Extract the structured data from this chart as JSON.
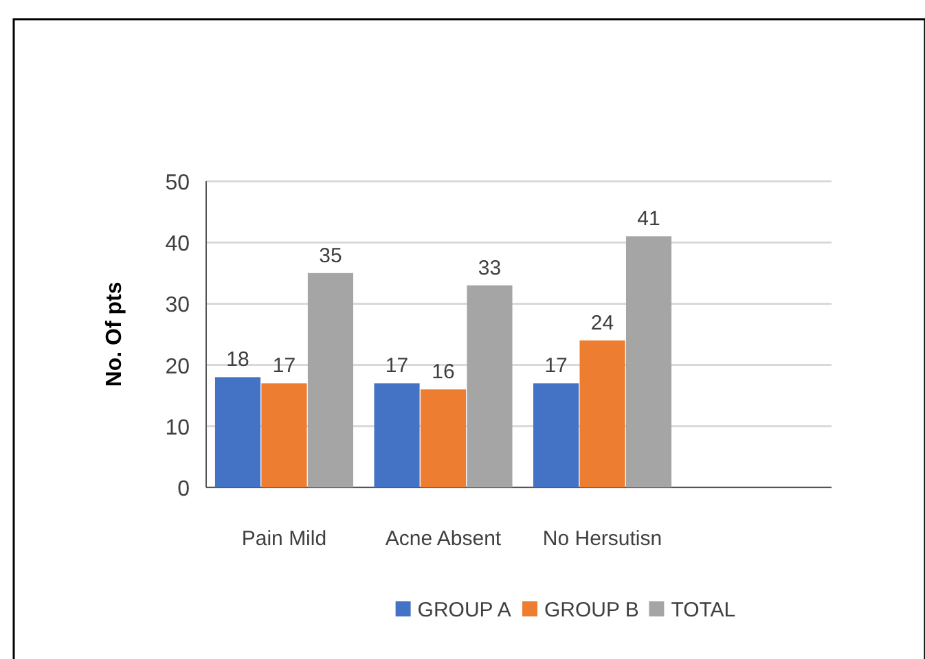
{
  "chart_data": {
    "type": "bar",
    "ylabel": "No. Of pts",
    "categories": [
      "Pain Mild",
      "Acne Absent",
      "No Hersutisn"
    ],
    "series": [
      {
        "name": "GROUP A",
        "color": "#4472c4",
        "values": [
          18,
          17,
          17
        ]
      },
      {
        "name": "GROUP B",
        "color": "#ed7d31",
        "values": [
          17,
          16,
          24
        ]
      },
      {
        "name": "TOTAL",
        "color": "#a5a5a5",
        "values": [
          35,
          33,
          41
        ]
      }
    ],
    "ylim": [
      0,
      50
    ],
    "yticks": [
      0,
      10,
      20,
      30,
      40,
      50
    ],
    "grid": "y",
    "legend": "bottom",
    "data_labels": true
  }
}
